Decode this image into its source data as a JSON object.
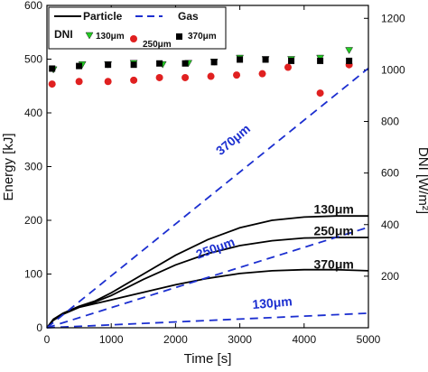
{
  "chart_data": {
    "type": "line",
    "xlabel": "Time [s]",
    "ylabel": "Energy [kJ]",
    "y2label": "DNI [W/m²]",
    "xlim": [
      0,
      5000
    ],
    "ylim": [
      0,
      600
    ],
    "y2lim": [
      0,
      1250
    ],
    "x_ticks": [
      "0",
      "1000",
      "2000",
      "3000",
      "4000",
      "5000"
    ],
    "y_ticks": [
      "0",
      "100",
      "200",
      "300",
      "400",
      "500",
      "600"
    ],
    "y2_ticks": [
      "200",
      "400",
      "600",
      "800",
      "1000",
      "1200"
    ],
    "legend": {
      "particle": "Particle",
      "gas": "Gas",
      "dni": "DNI",
      "m130": "130μm",
      "m250": "250μm",
      "m370": "370μm"
    },
    "colors": {
      "particle": "#000000",
      "gas": "#1c2fd0",
      "dni_130": "#22cc22",
      "dni_250": "#e02020",
      "dni_370": "#000000"
    },
    "series": [
      {
        "name": "Particle 130μm",
        "axis": "left",
        "style": "solid",
        "color": "#000000",
        "x": [
          0,
          100,
          250,
          500,
          750,
          1000,
          1500,
          2000,
          2500,
          3000,
          3500,
          4000,
          4500,
          5000
        ],
        "y": [
          0,
          16,
          27,
          40,
          50,
          65,
          100,
          135,
          164,
          186,
          200,
          206,
          208,
          208
        ]
      },
      {
        "name": "Particle 250μm",
        "axis": "left",
        "style": "solid",
        "color": "#000000",
        "x": [
          0,
          100,
          250,
          500,
          750,
          1000,
          1500,
          2000,
          2500,
          3000,
          3500,
          4000,
          4500,
          5000
        ],
        "y": [
          0,
          15,
          26,
          39,
          48,
          60,
          90,
          117,
          138,
          153,
          162,
          167,
          168,
          168
        ]
      },
      {
        "name": "Particle 370μm",
        "axis": "left",
        "style": "solid",
        "color": "#000000",
        "x": [
          0,
          100,
          250,
          500,
          750,
          1000,
          1500,
          2000,
          2500,
          3000,
          3500,
          4000,
          4500,
          5000
        ],
        "y": [
          0,
          14,
          25,
          38,
          45,
          52,
          66,
          80,
          92,
          101,
          106,
          108,
          108,
          106
        ]
      },
      {
        "name": "Gas 370μm",
        "axis": "left",
        "style": "dashed",
        "color": "#1c2fd0",
        "x": [
          0,
          5000
        ],
        "y": [
          0,
          483
        ]
      },
      {
        "name": "Gas 250μm",
        "axis": "left",
        "style": "dashed",
        "color": "#1c2fd0",
        "x": [
          0,
          5000
        ],
        "y": [
          0,
          187
        ]
      },
      {
        "name": "Gas 130μm",
        "axis": "left",
        "style": "dashed",
        "color": "#1c2fd0",
        "x": [
          0,
          5000
        ],
        "y": [
          0,
          27
        ]
      },
      {
        "name": "DNI 130μm",
        "axis": "right",
        "marker": "triangle-down",
        "color": "#22cc22",
        "x": [
          100,
          550,
          950,
          1350,
          1800,
          2200,
          2600,
          3000,
          3400,
          3800,
          4250,
          4700
        ],
        "y": [
          1000,
          1020,
          1020,
          1025,
          1020,
          1025,
          1030,
          1045,
          1040,
          1040,
          1045,
          1075
        ]
      },
      {
        "name": "DNI 250μm",
        "axis": "right",
        "marker": "circle",
        "color": "#e02020",
        "x": [
          80,
          500,
          950,
          1350,
          1750,
          2150,
          2550,
          2950,
          3350,
          3750,
          4250,
          4700
        ],
        "y": [
          945,
          955,
          955,
          960,
          970,
          970,
          975,
          980,
          985,
          1010,
          910,
          1020
        ]
      },
      {
        "name": "DNI 370μm",
        "axis": "right",
        "marker": "square",
        "color": "#000000",
        "x": [
          80,
          500,
          950,
          1350,
          1750,
          2150,
          2600,
          3000,
          3400,
          3800,
          4250,
          4700
        ],
        "y": [
          1005,
          1015,
          1020,
          1020,
          1025,
          1025,
          1030,
          1040,
          1040,
          1035,
          1035,
          1035
        ]
      }
    ],
    "annotations": [
      {
        "text": "370μm",
        "color": "black",
        "x": 4150,
        "y": 110
      },
      {
        "text": "250μm",
        "color": "black",
        "x": 4150,
        "y": 172
      },
      {
        "text": "130μm",
        "color": "black",
        "x": 4150,
        "y": 213
      },
      {
        "text": "370μm",
        "color": "blue",
        "x": 2700,
        "y": 320,
        "rotate": -40
      },
      {
        "text": "250μm",
        "color": "blue",
        "x": 2350,
        "y": 128,
        "rotate": -20
      },
      {
        "text": "130μm",
        "color": "blue",
        "x": 3200,
        "y": 35,
        "rotate": -5
      }
    ]
  }
}
